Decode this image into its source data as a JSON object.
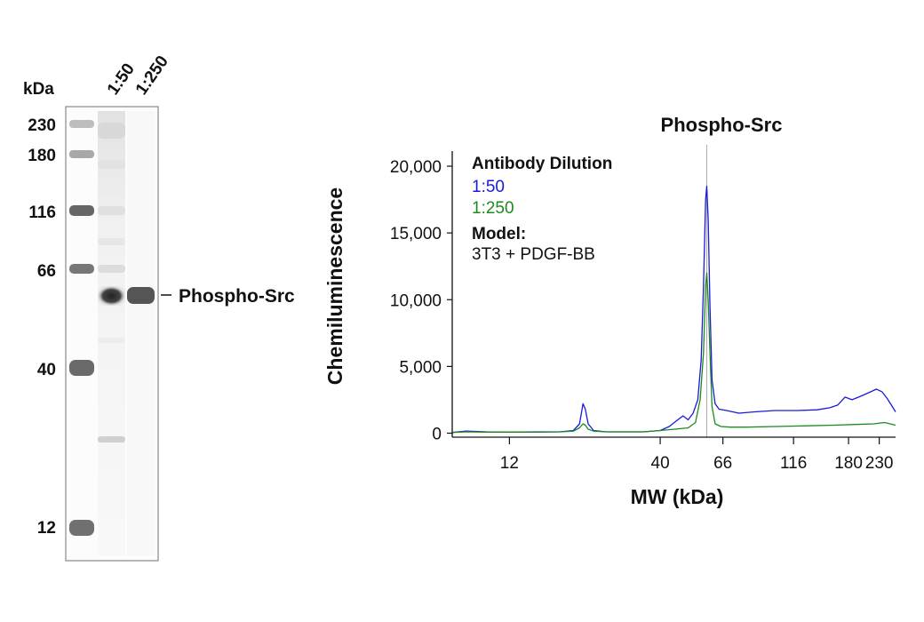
{
  "blot": {
    "unit_label": "kDa",
    "lanes": [
      "1:50",
      "1:250"
    ],
    "markers": [
      "230",
      "180",
      "116",
      "66",
      "40",
      "12"
    ],
    "band_label": "Phospho-Src"
  },
  "chart_data": {
    "type": "line",
    "title": "Phospho-Src",
    "xlabel": "MW (kDa)",
    "ylabel": "Chemiluminescence",
    "x_scale": "log",
    "x_ticks": [
      12,
      40,
      66,
      116,
      180,
      230
    ],
    "x_tick_labels": [
      "12",
      "40",
      "66",
      "116",
      "180",
      "230"
    ],
    "xlim": [
      7.6,
      262
    ],
    "ylim": [
      -300,
      21000
    ],
    "y_ticks": [
      0,
      5000,
      10000,
      15000,
      20000
    ],
    "y_tick_labels": [
      "0",
      "5,000",
      "10,000",
      "15,000",
      "20,000"
    ],
    "reference_line_x": 58,
    "legend": {
      "heading": "Antibody Dilution",
      "model_heading": "Model:",
      "model_value": "3T3 + PDGF-BB"
    },
    "series": [
      {
        "name": "1:50",
        "color": "#1a1adb",
        "x": [
          7.6,
          8.5,
          10,
          12,
          15,
          18,
          20,
          21,
          21.6,
          22,
          22.5,
          23.5,
          26,
          30,
          35,
          40,
          43,
          46,
          48,
          50,
          52,
          54,
          55.5,
          56.5,
          57.5,
          58,
          58.7,
          59.5,
          60.5,
          62,
          64,
          68,
          75,
          85,
          100,
          120,
          140,
          155,
          165,
          175,
          185,
          195,
          205,
          215,
          225,
          235,
          245,
          255,
          262
        ],
        "y": [
          50,
          150,
          100,
          80,
          100,
          100,
          200,
          700,
          2200,
          1800,
          700,
          200,
          100,
          100,
          100,
          200,
          500,
          1000,
          1300,
          1000,
          1500,
          2500,
          5500,
          11000,
          17500,
          18500,
          16000,
          9500,
          4000,
          2200,
          1800,
          1700,
          1500,
          1600,
          1700,
          1700,
          1750,
          1900,
          2100,
          2700,
          2500,
          2700,
          2900,
          3100,
          3300,
          3100,
          2600,
          2000,
          1600
        ]
      },
      {
        "name": "1:250",
        "color": "#1e8a1e",
        "x": [
          7.6,
          8.5,
          10,
          12,
          15,
          18,
          20,
          21,
          21.6,
          22,
          22.5,
          23.5,
          26,
          30,
          35,
          40,
          45,
          50,
          53,
          55,
          56.5,
          57.5,
          58,
          58.7,
          59.5,
          60.5,
          62,
          65,
          70,
          80,
          100,
          130,
          160,
          190,
          220,
          240,
          262
        ],
        "y": [
          50,
          100,
          80,
          80,
          80,
          100,
          150,
          400,
          700,
          600,
          300,
          150,
          100,
          100,
          100,
          200,
          300,
          400,
          800,
          2500,
          6000,
          11000,
          12000,
          10000,
          6000,
          2000,
          700,
          500,
          450,
          450,
          500,
          550,
          600,
          650,
          700,
          800,
          600
        ]
      }
    ]
  }
}
